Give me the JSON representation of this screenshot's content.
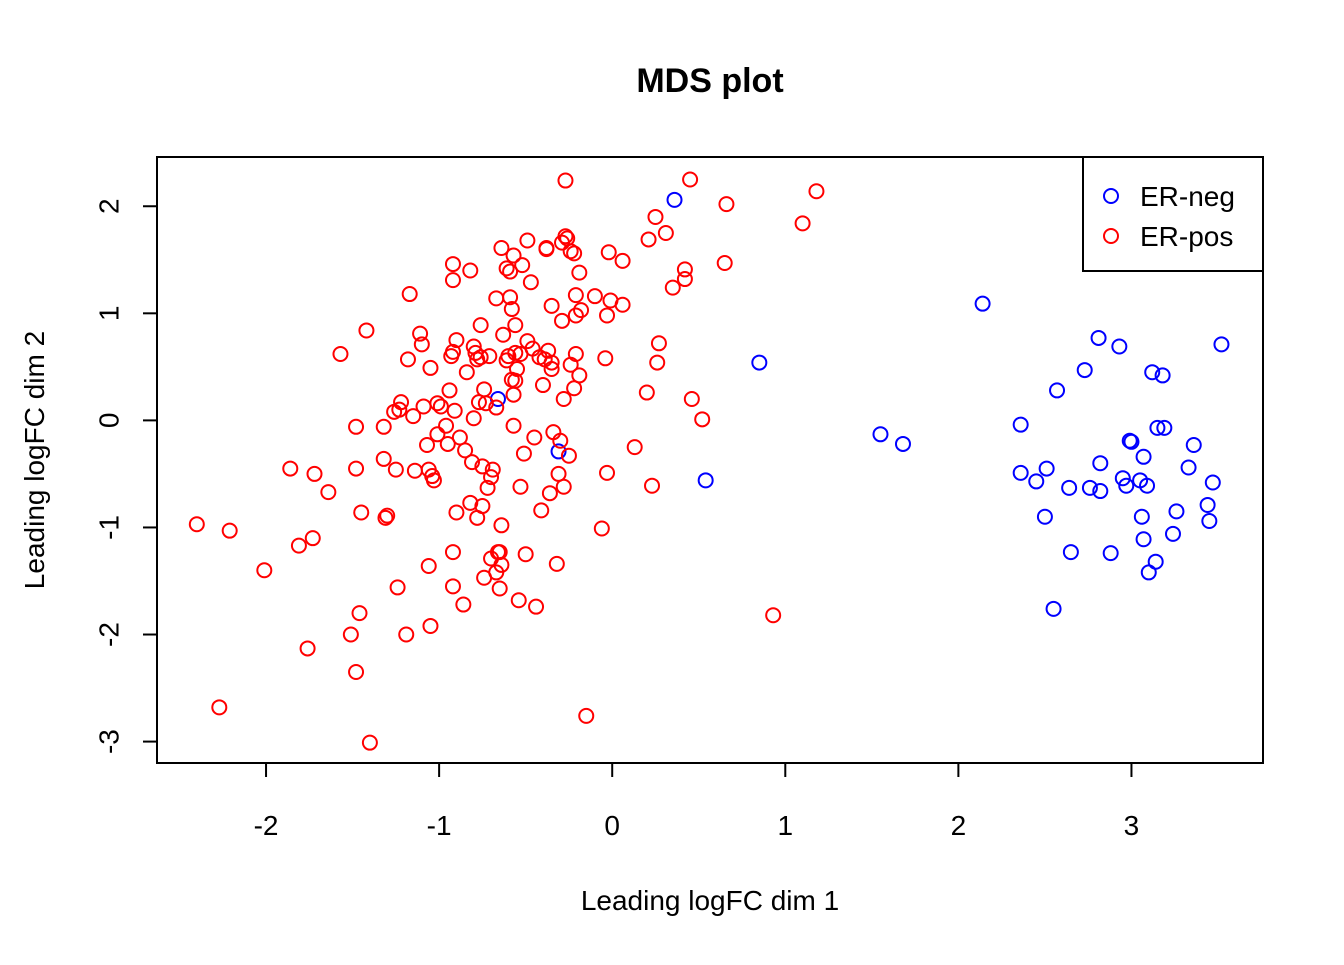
{
  "chart_data": {
    "type": "scatter",
    "title": "MDS plot",
    "xlabel": "Leading logFC dim 1",
    "ylabel": "Leading logFC dim 2",
    "xlim": [
      -2.63,
      3.76
    ],
    "ylim": [
      -3.2,
      2.46
    ],
    "x_ticks": [
      "-2",
      "-1",
      "0",
      "1",
      "2",
      "3"
    ],
    "y_ticks": [
      "-3",
      "-2",
      "-1",
      "0",
      "1",
      "2"
    ],
    "marker": "open-circle",
    "grid": false,
    "legend_position": "top-right",
    "colors": {
      "ER-neg": "#0000ff",
      "ER-pos": "#ff0000",
      "axis": "#000000"
    },
    "series": [
      {
        "name": "ER-neg",
        "color": "#0000ff",
        "points": [
          [
            0.36,
            2.06
          ],
          [
            0.85,
            0.54
          ],
          [
            0.54,
            -0.56
          ],
          [
            -0.66,
            0.2
          ],
          [
            -0.31,
            -0.29
          ],
          [
            1.55,
            -0.13
          ],
          [
            1.68,
            -0.22
          ],
          [
            2.14,
            1.09
          ],
          [
            2.36,
            -0.04
          ],
          [
            2.36,
            -0.49
          ],
          [
            2.45,
            -0.57
          ],
          [
            2.51,
            -0.45
          ],
          [
            2.5,
            -0.9
          ],
          [
            2.55,
            -1.76
          ],
          [
            2.57,
            0.28
          ],
          [
            2.64,
            -0.63
          ],
          [
            2.65,
            -1.23
          ],
          [
            2.73,
            0.47
          ],
          [
            2.76,
            -0.63
          ],
          [
            2.81,
            0.77
          ],
          [
            2.82,
            -0.4
          ],
          [
            2.82,
            -0.66
          ],
          [
            2.88,
            -1.24
          ],
          [
            2.93,
            0.69
          ],
          [
            2.95,
            -0.54
          ],
          [
            2.97,
            -0.61
          ],
          [
            2.99,
            -0.19
          ],
          [
            3.0,
            -0.2
          ],
          [
            3.05,
            -0.56
          ],
          [
            3.06,
            -0.9
          ],
          [
            3.07,
            -0.34
          ],
          [
            3.07,
            -1.11
          ],
          [
            3.09,
            -0.61
          ],
          [
            3.1,
            -1.42
          ],
          [
            3.12,
            0.45
          ],
          [
            3.14,
            -1.32
          ],
          [
            3.15,
            -0.07
          ],
          [
            3.18,
            0.42
          ],
          [
            3.19,
            -0.07
          ],
          [
            3.24,
            -1.06
          ],
          [
            3.26,
            -0.85
          ],
          [
            3.33,
            -0.44
          ],
          [
            3.36,
            -0.23
          ],
          [
            3.44,
            -0.79
          ],
          [
            3.45,
            -0.94
          ],
          [
            3.47,
            -0.58
          ],
          [
            3.52,
            0.71
          ]
        ]
      },
      {
        "name": "ER-pos",
        "color": "#ff0000",
        "points": [
          [
            -2.4,
            -0.97
          ],
          [
            -2.21,
            -1.03
          ],
          [
            -2.27,
            -2.68
          ],
          [
            -2.01,
            -1.4
          ],
          [
            -1.86,
            -0.45
          ],
          [
            -1.81,
            -1.17
          ],
          [
            -1.76,
            -2.13
          ],
          [
            -1.73,
            -1.1
          ],
          [
            -1.72,
            -0.5
          ],
          [
            -1.64,
            -0.67
          ],
          [
            -1.57,
            0.62
          ],
          [
            -1.51,
            -2.0
          ],
          [
            -1.48,
            -0.06
          ],
          [
            -1.48,
            -0.45
          ],
          [
            -1.48,
            -2.35
          ],
          [
            -1.46,
            -1.8
          ],
          [
            -1.45,
            -0.86
          ],
          [
            -1.42,
            0.84
          ],
          [
            -1.4,
            -3.01
          ],
          [
            -1.32,
            -0.06
          ],
          [
            -1.32,
            -0.36
          ],
          [
            -1.31,
            -0.91
          ],
          [
            -1.3,
            -0.89
          ],
          [
            -1.26,
            0.08
          ],
          [
            -1.25,
            -0.46
          ],
          [
            -1.24,
            -1.56
          ],
          [
            -1.23,
            0.1
          ],
          [
            -1.22,
            0.17
          ],
          [
            -1.19,
            -2.0
          ],
          [
            -1.18,
            0.57
          ],
          [
            -1.17,
            1.18
          ],
          [
            -1.15,
            0.04
          ],
          [
            -1.14,
            -0.47
          ],
          [
            -1.11,
            0.81
          ],
          [
            -1.1,
            0.71
          ],
          [
            -1.09,
            0.13
          ],
          [
            -1.07,
            -0.23
          ],
          [
            -1.06,
            -0.46
          ],
          [
            -1.06,
            -1.36
          ],
          [
            -1.05,
            -1.92
          ],
          [
            -1.05,
            0.49
          ],
          [
            -1.04,
            -0.52
          ],
          [
            -1.03,
            -0.56
          ],
          [
            -1.01,
            0.16
          ],
          [
            -1.01,
            -0.13
          ],
          [
            -0.99,
            0.13
          ],
          [
            -0.96,
            -0.05
          ],
          [
            -0.95,
            -0.22
          ],
          [
            -0.94,
            0.28
          ],
          [
            -0.93,
            0.6
          ],
          [
            -0.92,
            0.64
          ],
          [
            -0.92,
            1.31
          ],
          [
            -0.92,
            1.46
          ],
          [
            -0.92,
            -1.23
          ],
          [
            -0.92,
            -1.55
          ],
          [
            -0.91,
            0.09
          ],
          [
            -0.9,
            0.75
          ],
          [
            -0.9,
            -0.86
          ],
          [
            -0.88,
            -0.16
          ],
          [
            -0.86,
            -1.72
          ],
          [
            -0.85,
            -0.28
          ],
          [
            -0.84,
            0.45
          ],
          [
            -0.82,
            1.4
          ],
          [
            -0.82,
            -0.77
          ],
          [
            -0.81,
            -0.39
          ],
          [
            -0.8,
            0.02
          ],
          [
            -0.8,
            0.69
          ],
          [
            -0.79,
            0.63
          ],
          [
            -0.78,
            -0.91
          ],
          [
            -0.78,
            0.57
          ],
          [
            -0.77,
            0.17
          ],
          [
            -0.76,
            0.89
          ],
          [
            -0.76,
            0.59
          ],
          [
            -0.75,
            -0.43
          ],
          [
            -0.75,
            -0.8
          ],
          [
            -0.74,
            -1.47
          ],
          [
            -0.74,
            0.29
          ],
          [
            -0.73,
            0.16
          ],
          [
            -0.72,
            -0.63
          ],
          [
            -0.71,
            0.6
          ],
          [
            -0.7,
            -0.53
          ],
          [
            -0.7,
            -1.29
          ],
          [
            -0.69,
            -0.46
          ],
          [
            -0.67,
            1.14
          ],
          [
            -0.67,
            0.12
          ],
          [
            -0.67,
            -1.42
          ],
          [
            -0.66,
            -1.23
          ],
          [
            -0.65,
            -1.23
          ],
          [
            -0.65,
            -1.57
          ],
          [
            -0.64,
            1.61
          ],
          [
            -0.64,
            -1.35
          ],
          [
            -0.64,
            -0.98
          ],
          [
            -0.63,
            0.8
          ],
          [
            -0.61,
            0.56
          ],
          [
            -0.61,
            1.42
          ],
          [
            -0.6,
            0.6
          ],
          [
            -0.59,
            1.39
          ],
          [
            -0.59,
            1.15
          ],
          [
            -0.58,
            1.04
          ],
          [
            -0.58,
            0.38
          ],
          [
            -0.57,
            0.24
          ],
          [
            -0.57,
            -0.05
          ],
          [
            -0.57,
            1.54
          ],
          [
            -0.56,
            0.89
          ],
          [
            -0.56,
            0.63
          ],
          [
            -0.56,
            0.37
          ],
          [
            -0.55,
            0.48
          ],
          [
            -0.54,
            -1.68
          ],
          [
            -0.53,
            0.62
          ],
          [
            -0.53,
            -0.62
          ],
          [
            -0.52,
            1.45
          ],
          [
            -0.51,
            -0.31
          ],
          [
            -0.5,
            -1.25
          ],
          [
            -0.49,
            1.68
          ],
          [
            -0.49,
            0.74
          ],
          [
            -0.47,
            1.29
          ],
          [
            -0.46,
            0.67
          ],
          [
            -0.45,
            -0.16
          ],
          [
            -0.44,
            -1.74
          ],
          [
            -0.42,
            0.59
          ],
          [
            -0.41,
            -0.84
          ],
          [
            -0.4,
            0.33
          ],
          [
            -0.39,
            0.57
          ],
          [
            -0.38,
            1.6
          ],
          [
            -0.38,
            1.61
          ],
          [
            -0.37,
            0.65
          ],
          [
            -0.36,
            -0.68
          ],
          [
            -0.35,
            0.48
          ],
          [
            -0.35,
            0.54
          ],
          [
            -0.35,
            1.07
          ],
          [
            -0.34,
            -0.11
          ],
          [
            -0.32,
            -1.34
          ],
          [
            -0.31,
            -0.5
          ],
          [
            -0.3,
            -0.19
          ],
          [
            -0.29,
            0.93
          ],
          [
            -0.29,
            1.66
          ],
          [
            -0.28,
            -0.62
          ],
          [
            -0.28,
            0.2
          ],
          [
            -0.27,
            2.24
          ],
          [
            -0.27,
            1.72
          ],
          [
            -0.26,
            1.7
          ],
          [
            -0.25,
            -0.33
          ],
          [
            -0.24,
            0.52
          ],
          [
            -0.24,
            1.58
          ],
          [
            -0.22,
            0.3
          ],
          [
            -0.22,
            1.56
          ],
          [
            -0.21,
            0.98
          ],
          [
            -0.21,
            0.62
          ],
          [
            -0.21,
            1.17
          ],
          [
            -0.19,
            0.42
          ],
          [
            -0.19,
            1.38
          ],
          [
            -0.18,
            1.03
          ],
          [
            -0.15,
            -2.76
          ],
          [
            -0.1,
            1.16
          ],
          [
            -0.06,
            -1.01
          ],
          [
            -0.04,
            0.58
          ],
          [
            -0.03,
            -0.49
          ],
          [
            -0.03,
            0.98
          ],
          [
            -0.02,
            1.57
          ],
          [
            -0.01,
            1.12
          ],
          [
            0.06,
            1.49
          ],
          [
            0.06,
            1.08
          ],
          [
            0.13,
            -0.25
          ],
          [
            0.2,
            0.26
          ],
          [
            0.21,
            1.69
          ],
          [
            0.23,
            -0.61
          ],
          [
            0.25,
            1.9
          ],
          [
            0.26,
            0.54
          ],
          [
            0.27,
            0.72
          ],
          [
            0.31,
            1.75
          ],
          [
            0.35,
            1.24
          ],
          [
            0.42,
            1.41
          ],
          [
            0.42,
            1.32
          ],
          [
            0.45,
            2.25
          ],
          [
            0.46,
            0.2
          ],
          [
            0.52,
            0.01
          ],
          [
            0.65,
            1.47
          ],
          [
            0.66,
            2.02
          ],
          [
            0.93,
            -1.82
          ],
          [
            1.1,
            1.84
          ],
          [
            1.18,
            2.14
          ]
        ]
      }
    ]
  }
}
